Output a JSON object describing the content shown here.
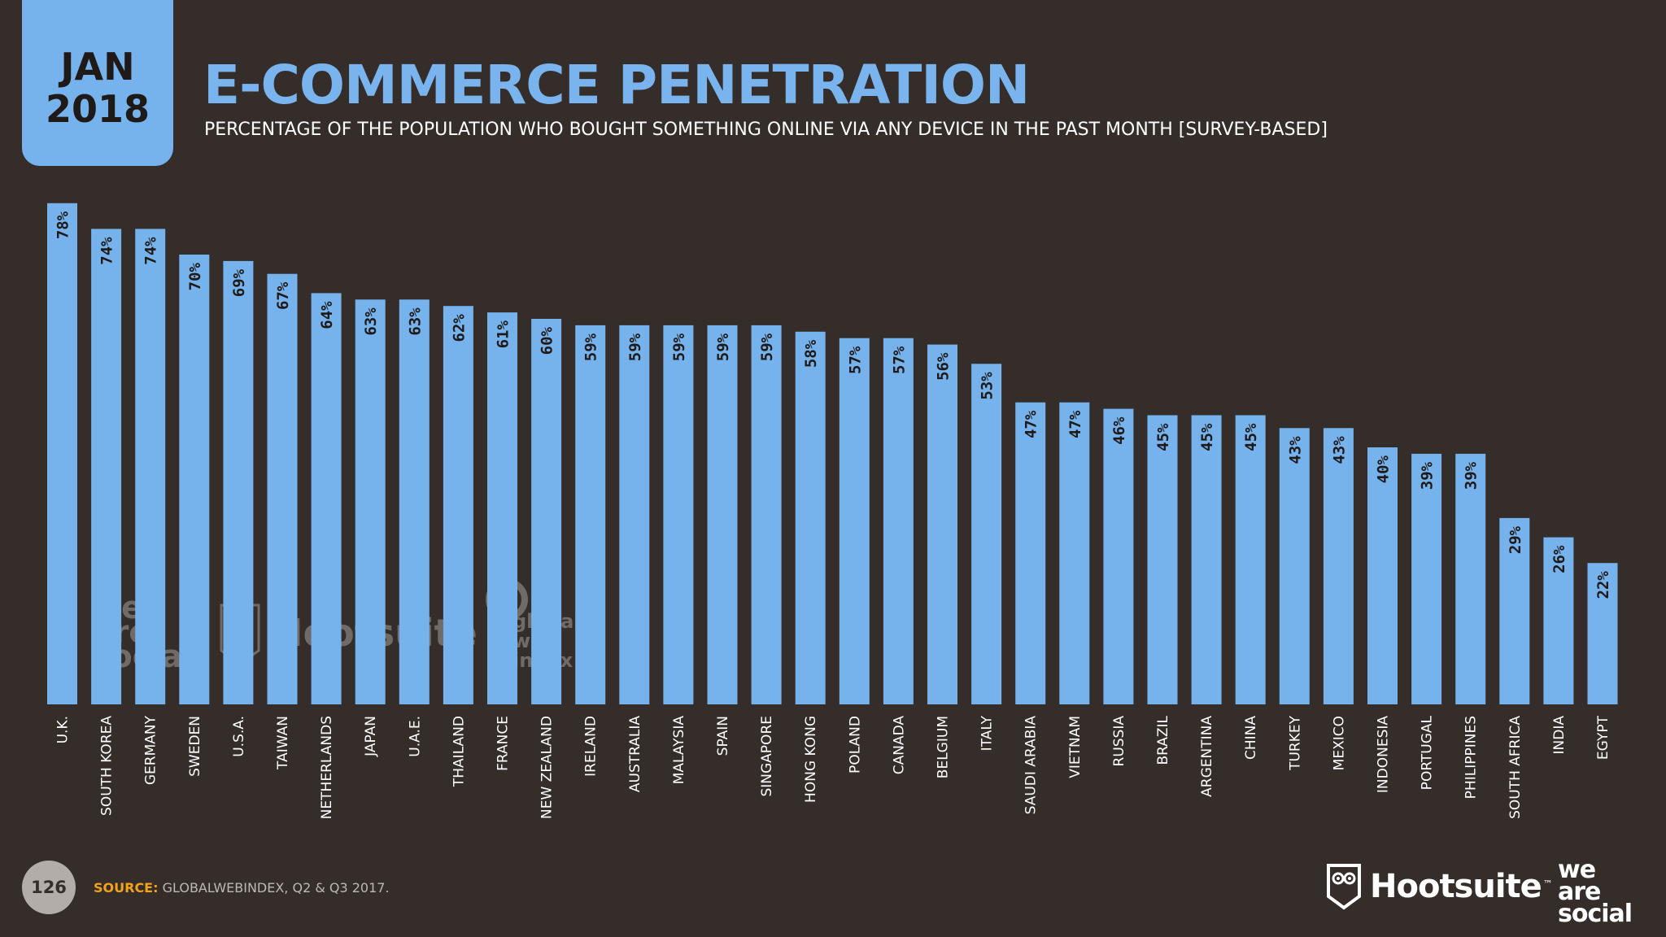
{
  "badge": {
    "month": "JAN",
    "year": "2018"
  },
  "header": {
    "title": "E-COMMERCE PENETRATION",
    "subtitle": "PERCENTAGE OF THE POPULATION WHO BOUGHT SOMETHING ONLINE VIA ANY DEVICE IN THE PAST MONTH [SURVEY-BASED]"
  },
  "chart_data": {
    "type": "bar",
    "title": "E-COMMERCE PENETRATION",
    "xlabel": "",
    "ylabel": "",
    "ylim": [
      0,
      100
    ],
    "grid": false,
    "legend": "none",
    "value_suffix": "%",
    "categories": [
      "U.K.",
      "SOUTH KOREA",
      "GERMANY",
      "SWEDEN",
      "U.S.A.",
      "TAIWAN",
      "NETHERLANDS",
      "JAPAN",
      "U.A.E.",
      "THAILAND",
      "FRANCE",
      "NEW ZEALAND",
      "IRELAND",
      "AUSTRALIA",
      "MALAYSIA",
      "SPAIN",
      "SINGAPORE",
      "HONG KONG",
      "POLAND",
      "CANADA",
      "BELGIUM",
      "ITALY",
      "SAUDI ARABIA",
      "VIETNAM",
      "RUSSIA",
      "BRAZIL",
      "ARGENTINA",
      "CHINA",
      "TURKEY",
      "MEXICO",
      "INDONESIA",
      "PORTUGAL",
      "PHILIPPINES",
      "SOUTH AFRICA",
      "INDIA",
      "EGYPT"
    ],
    "values": [
      78,
      74,
      74,
      70,
      69,
      67,
      64,
      63,
      63,
      62,
      61,
      60,
      59,
      59,
      59,
      59,
      59,
      58,
      57,
      57,
      56,
      53,
      47,
      47,
      46,
      45,
      45,
      45,
      43,
      43,
      40,
      39,
      39,
      29,
      26,
      22
    ],
    "colors": {
      "bar": "#76b2ec",
      "background": "#352d2a",
      "title": "#7ab4ee"
    }
  },
  "footer": {
    "page_number": "126",
    "source_label": "SOURCE:",
    "source_text": "GLOBALWEBINDEX, Q2 & Q3 2017.",
    "brand_hootsuite": "Hootsuite",
    "brand_hootsuite_tm": "™",
    "brand_was": [
      "we",
      "are",
      "social"
    ]
  },
  "watermarks": {
    "was": [
      "we",
      "are",
      "social"
    ],
    "hootsuite": "Hootsuite",
    "gwi": [
      "global",
      "web",
      "index"
    ]
  },
  "icons": {
    "hootsuite_owl": "owl-icon",
    "gwi_logo": "gwi-logo-icon"
  }
}
